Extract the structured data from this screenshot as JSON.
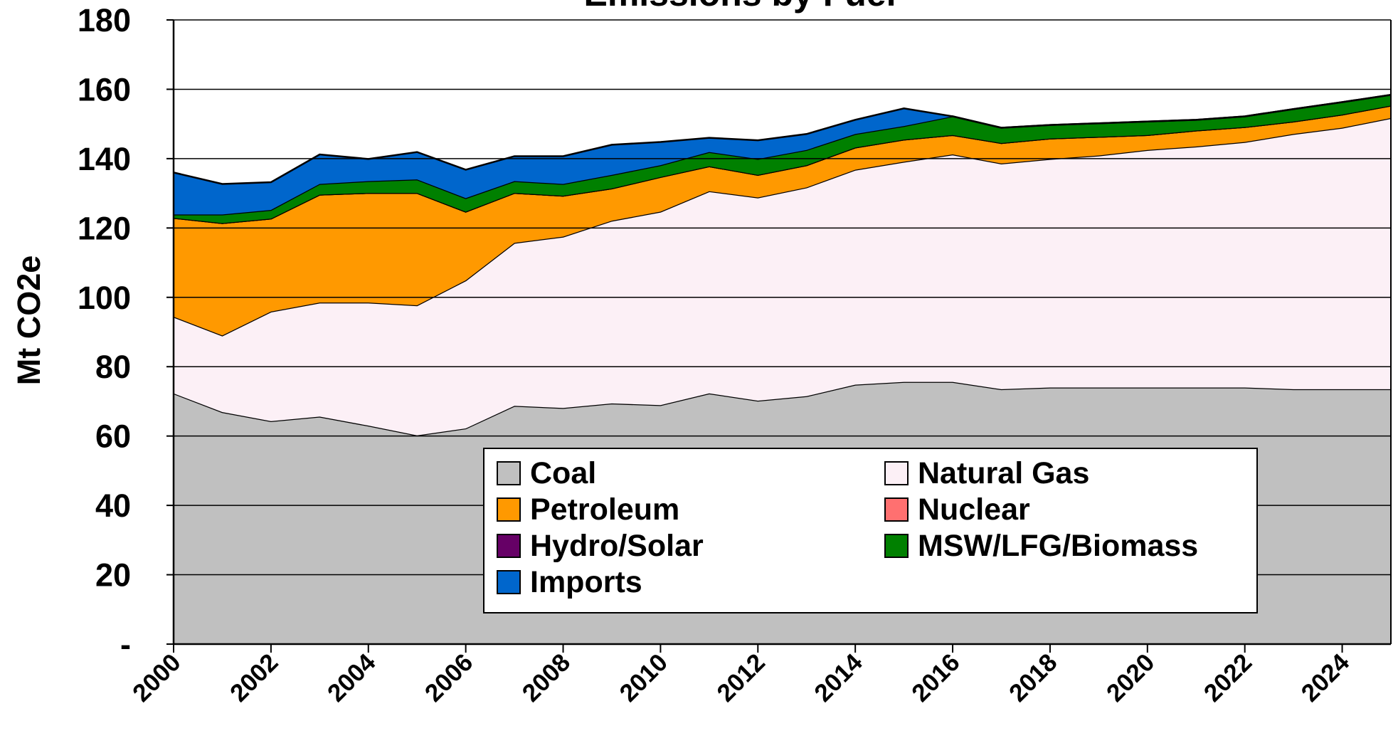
{
  "chart_data": {
    "type": "stacked_area",
    "title": "Emissions by Fuel",
    "y_label": "Mt CO2e",
    "x": [
      2000,
      2001,
      2002,
      2003,
      2004,
      2005,
      2006,
      2007,
      2008,
      2009,
      2010,
      2011,
      2012,
      2013,
      2014,
      2015,
      2016,
      2017,
      2018,
      2019,
      2020,
      2021,
      2022,
      2023,
      2024,
      2025
    ],
    "xlim": [
      2000,
      2025
    ],
    "xticks": [
      2000,
      2002,
      2004,
      2006,
      2008,
      2010,
      2012,
      2014,
      2016,
      2018,
      2020,
      2022,
      2024
    ],
    "ylim": [
      0,
      180
    ],
    "yticks": [
      {
        "value": 0,
        "label": "-"
      },
      20,
      40,
      60,
      80,
      100,
      120,
      140,
      160,
      180
    ],
    "grid": true,
    "series": [
      {
        "name": "Coal",
        "color": "#c0c0c0",
        "values": [
          72.3,
          66.9,
          64.3,
          65.6,
          63.0,
          60.2,
          62.2,
          68.7,
          68.1,
          69.4,
          68.9,
          72.3,
          70.2,
          71.5,
          74.8,
          75.6,
          75.6,
          73.5,
          74.0,
          74.0,
          74.0,
          74.0,
          74.0,
          73.5,
          73.5,
          73.5
        ]
      },
      {
        "name": "Natural Gas",
        "color": "#fcf0f6",
        "values": [
          22.1,
          22.1,
          31.6,
          32.9,
          35.5,
          37.5,
          42.7,
          47.0,
          49.4,
          52.7,
          55.8,
          58.3,
          58.6,
          60.2,
          62.0,
          63.5,
          65.6,
          65.1,
          65.9,
          66.9,
          68.5,
          69.5,
          70.8,
          73.6,
          75.4,
          78.2
        ]
      },
      {
        "name": "Petroleum",
        "color": "#ff9900",
        "values": [
          28.5,
          32.4,
          26.8,
          31.1,
          31.6,
          32.4,
          19.8,
          14.4,
          11.8,
          9.3,
          10.0,
          7.2,
          6.5,
          6.4,
          6.4,
          6.4,
          5.6,
          5.9,
          5.9,
          5.4,
          4.3,
          4.6,
          4.3,
          3.6,
          3.8,
          3.6
        ]
      },
      {
        "name": "Nuclear",
        "color": "#ff7070",
        "values": [
          0,
          0,
          0,
          0,
          0,
          0,
          0,
          0,
          0,
          0,
          0,
          0,
          0,
          0,
          0,
          0,
          0,
          0,
          0,
          0,
          0,
          0,
          0,
          0,
          0,
          0
        ]
      },
      {
        "name": "Hydro/Solar",
        "color": "#660066",
        "values": [
          0,
          0,
          0,
          0,
          0,
          0,
          0,
          0,
          0,
          0,
          0,
          0,
          0,
          0,
          0,
          0,
          0,
          0,
          0,
          0,
          0,
          0,
          0,
          0,
          0,
          0
        ]
      },
      {
        "name": "MSW/LFG/Biomass",
        "color": "#008000",
        "values": [
          1.0,
          2.5,
          2.5,
          3.1,
          3.4,
          3.9,
          3.9,
          3.4,
          3.4,
          3.9,
          3.4,
          4.1,
          4.6,
          4.4,
          3.9,
          3.9,
          5.4,
          4.4,
          3.9,
          3.9,
          3.9,
          3.1,
          3.1,
          3.6,
          3.6,
          3.1
        ]
      },
      {
        "name": "Imports",
        "color": "#0066cc",
        "values": [
          12.1,
          8.8,
          8.0,
          8.5,
          6.4,
          7.9,
          8.2,
          7.2,
          8.0,
          8.7,
          6.7,
          4.1,
          5.4,
          4.6,
          4.1,
          5.1,
          0,
          0,
          0,
          0,
          0,
          0,
          0,
          0,
          0,
          0
        ]
      }
    ]
  }
}
